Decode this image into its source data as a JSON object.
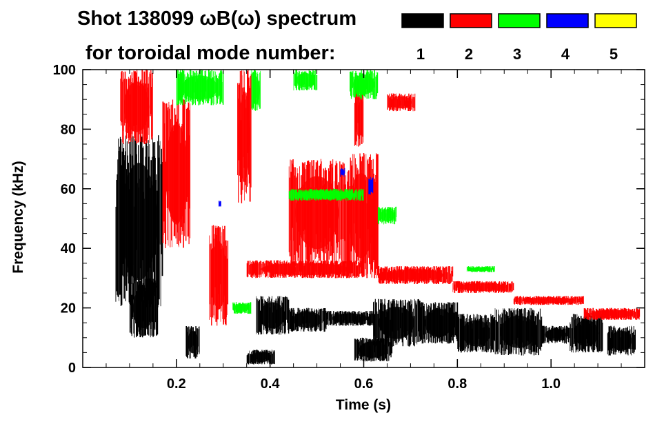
{
  "title": {
    "line1": "Shot 138099 ωB(ω) spectrum",
    "line2": "for toroidal mode number:"
  },
  "legend": [
    {
      "label": "1",
      "color": "#000000"
    },
    {
      "label": "2",
      "color": "#ff0000"
    },
    {
      "label": "3",
      "color": "#00ff00"
    },
    {
      "label": "4",
      "color": "#0000ff"
    },
    {
      "label": "5",
      "color": "#ffff00"
    }
  ],
  "chart_data": {
    "type": "spectrogram",
    "title": "Shot 138099 ωB(ω) spectrum for toroidal mode number:",
    "xlabel": "Time (s)",
    "ylabel": "Frequency (kHz)",
    "xlim": [
      0.0,
      1.2
    ],
    "ylim": [
      0,
      100
    ],
    "x_ticks": [
      {
        "value": 0.2,
        "label": "0.2"
      },
      {
        "value": 0.4,
        "label": "0.4"
      },
      {
        "value": 0.6,
        "label": "0.6"
      },
      {
        "value": 0.8,
        "label": "0.8"
      },
      {
        "value": 1.0,
        "label": "1.0"
      }
    ],
    "y_ticks": [
      {
        "value": 0,
        "label": "0"
      },
      {
        "value": 20,
        "label": "20"
      },
      {
        "value": 40,
        "label": "40"
      },
      {
        "value": 60,
        "label": "60"
      },
      {
        "value": 80,
        "label": "80"
      },
      {
        "value": 100,
        "label": "100"
      }
    ],
    "series": [
      {
        "name": "1",
        "color": "#000000",
        "blobs": [
          {
            "t0": 0.07,
            "t1": 0.17,
            "f0": 20,
            "f1": 78
          },
          {
            "t0": 0.1,
            "t1": 0.16,
            "f0": 10,
            "f1": 30
          },
          {
            "t0": 0.22,
            "t1": 0.25,
            "f0": 3,
            "f1": 14
          },
          {
            "t0": 0.35,
            "t1": 0.41,
            "f0": 1,
            "f1": 6
          },
          {
            "t0": 0.37,
            "t1": 0.44,
            "f0": 11,
            "f1": 24
          },
          {
            "t0": 0.44,
            "t1": 0.52,
            "f0": 12,
            "f1": 20
          },
          {
            "t0": 0.52,
            "t1": 0.62,
            "f0": 14,
            "f1": 19
          },
          {
            "t0": 0.58,
            "t1": 0.66,
            "f0": 2,
            "f1": 10
          },
          {
            "t0": 0.62,
            "t1": 0.72,
            "f0": 7,
            "f1": 23
          },
          {
            "t0": 0.72,
            "t1": 0.8,
            "f0": 8,
            "f1": 22
          },
          {
            "t0": 0.8,
            "t1": 0.88,
            "f0": 5,
            "f1": 18
          },
          {
            "t0": 0.88,
            "t1": 0.98,
            "f0": 4,
            "f1": 20
          },
          {
            "t0": 0.98,
            "t1": 1.04,
            "f0": 8,
            "f1": 14
          },
          {
            "t0": 1.04,
            "t1": 1.11,
            "f0": 5,
            "f1": 18
          },
          {
            "t0": 1.12,
            "t1": 1.18,
            "f0": 4,
            "f1": 14
          }
        ]
      },
      {
        "name": "2",
        "color": "#ff0000",
        "blobs": [
          {
            "t0": 0.08,
            "t1": 0.15,
            "f0": 75,
            "f1": 100
          },
          {
            "t0": 0.17,
            "t1": 0.23,
            "f0": 40,
            "f1": 90
          },
          {
            "t0": 0.27,
            "t1": 0.31,
            "f0": 14,
            "f1": 48
          },
          {
            "t0": 0.33,
            "t1": 0.36,
            "f0": 55,
            "f1": 100
          },
          {
            "t0": 0.35,
            "t1": 0.6,
            "f0": 30,
            "f1": 36
          },
          {
            "t0": 0.44,
            "t1": 0.56,
            "f0": 34,
            "f1": 70
          },
          {
            "t0": 0.56,
            "t1": 0.63,
            "f0": 30,
            "f1": 72
          },
          {
            "t0": 0.58,
            "t1": 0.6,
            "f0": 74,
            "f1": 95
          },
          {
            "t0": 0.65,
            "t1": 0.71,
            "f0": 86,
            "f1": 92
          },
          {
            "t0": 0.63,
            "t1": 0.79,
            "f0": 28,
            "f1": 34
          },
          {
            "t0": 0.79,
            "t1": 0.92,
            "f0": 25,
            "f1": 29
          },
          {
            "t0": 0.92,
            "t1": 1.07,
            "f0": 21,
            "f1": 24
          },
          {
            "t0": 1.07,
            "t1": 1.19,
            "f0": 16,
            "f1": 20
          }
        ]
      },
      {
        "name": "3",
        "color": "#00ff00",
        "blobs": [
          {
            "t0": 0.2,
            "t1": 0.3,
            "f0": 88,
            "f1": 100
          },
          {
            "t0": 0.36,
            "t1": 0.38,
            "f0": 86,
            "f1": 100
          },
          {
            "t0": 0.45,
            "t1": 0.5,
            "f0": 93,
            "f1": 100
          },
          {
            "t0": 0.57,
            "t1": 0.63,
            "f0": 90,
            "f1": 100
          },
          {
            "t0": 0.44,
            "t1": 0.6,
            "f0": 56,
            "f1": 60
          },
          {
            "t0": 0.63,
            "t1": 0.67,
            "f0": 48,
            "f1": 54
          },
          {
            "t0": 0.32,
            "t1": 0.36,
            "f0": 18,
            "f1": 22
          },
          {
            "t0": 0.82,
            "t1": 0.88,
            "f0": 32,
            "f1": 34
          }
        ]
      },
      {
        "name": "4",
        "color": "#0000ff",
        "blobs": [
          {
            "t0": 0.55,
            "t1": 0.56,
            "f0": 64,
            "f1": 67
          },
          {
            "t0": 0.61,
            "t1": 0.62,
            "f0": 58,
            "f1": 64
          },
          {
            "t0": 0.29,
            "t1": 0.295,
            "f0": 54,
            "f1": 56
          }
        ]
      },
      {
        "name": "5",
        "color": "#ffff00",
        "blobs": []
      }
    ]
  }
}
